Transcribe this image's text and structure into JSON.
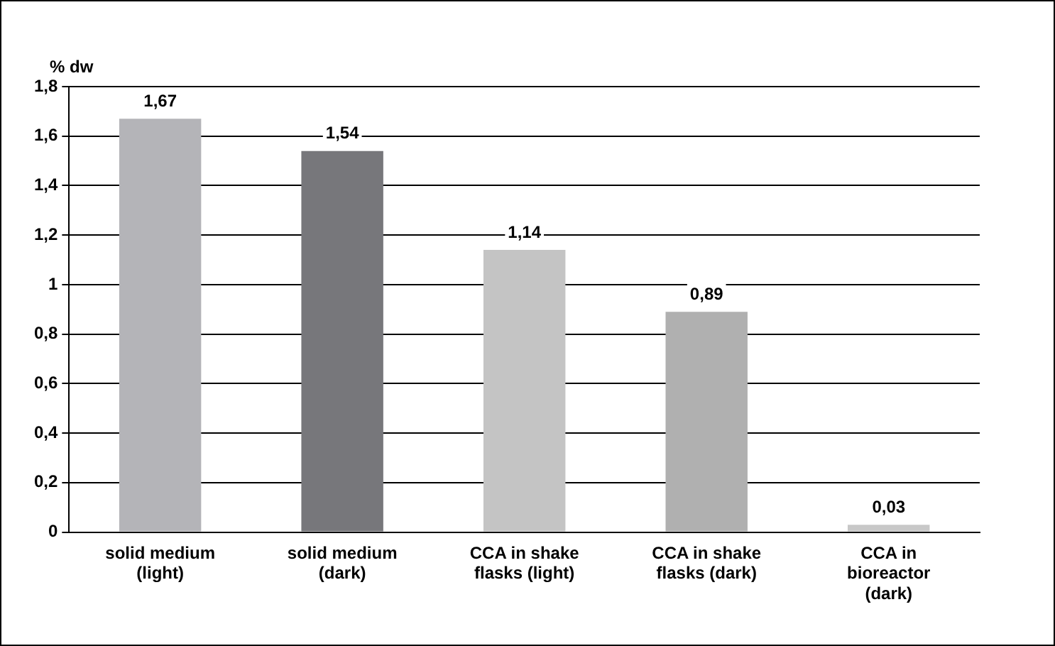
{
  "chart_data": {
    "type": "bar",
    "ylabel": "% dw",
    "categories": [
      "solid medium (light)",
      "solid medium (dark)",
      "CCA in shake flasks (light)",
      "CCA in shake flasks (dark)",
      "CCA in bioreactor (dark)"
    ],
    "values": [
      1.67,
      1.54,
      1.14,
      0.89,
      0.03
    ],
    "value_labels": [
      "1,67",
      "1,54",
      "1,14",
      "0,89",
      "0,03"
    ],
    "colors": [
      "#b4b4b8",
      "#77777b",
      "#c4c4c4",
      "#b0b0b0",
      "#c8c8c8"
    ],
    "ylim": [
      0,
      1.8
    ],
    "yticks": [
      0,
      {
        "value": 0.2,
        "label": "0,2"
      },
      {
        "value": 0.4,
        "label": "0,4"
      },
      {
        "value": 0.6,
        "label": "0,6"
      },
      {
        "value": 0.8,
        "label": "0,8"
      },
      1,
      {
        "value": 1.2,
        "label": "1,2"
      },
      {
        "value": 1.4,
        "label": "1,4"
      },
      {
        "value": 1.6,
        "label": "1,6"
      },
      {
        "value": 1.8,
        "label": "1,8"
      }
    ],
    "grid": "y"
  }
}
